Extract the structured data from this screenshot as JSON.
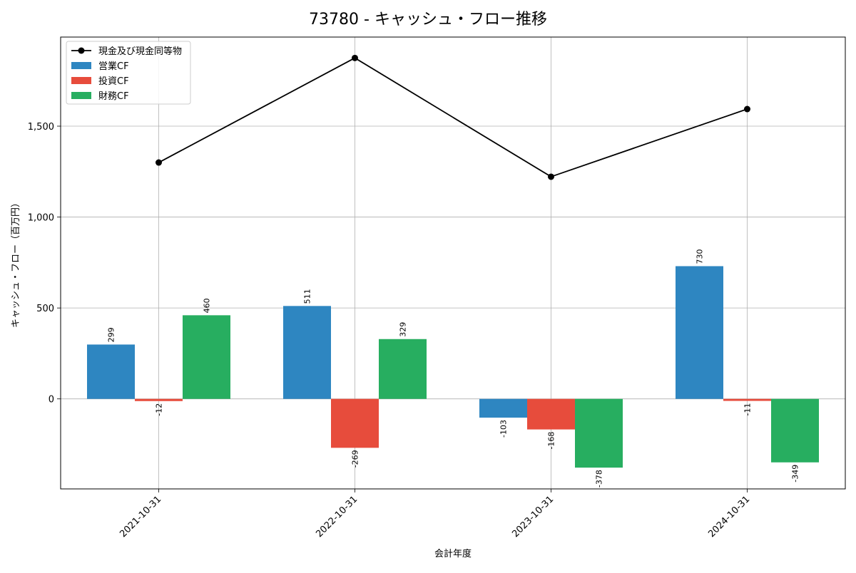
{
  "chart_data": {
    "type": "bar",
    "title": "73780 - キャッシュ・フロー推移",
    "xlabel": "会計年度",
    "ylabel": "キャッシュ・フロー（百万円）",
    "categories": [
      "2021-10-31",
      "2022-10-31",
      "2023-10-31",
      "2024-10-31"
    ],
    "ylim": [
      -495,
      1990
    ],
    "yticks": [
      0,
      500,
      1000,
      1500
    ],
    "ytick_labels": [
      "0",
      "500",
      "1,000",
      "1,500"
    ],
    "grid": true,
    "legend_position": "top-left",
    "series": [
      {
        "name": "営業CF",
        "kind": "bar",
        "color": "#2e86c1",
        "values": [
          299,
          511,
          -103,
          730
        ],
        "labels": [
          "299",
          "511",
          "-103",
          "730"
        ]
      },
      {
        "name": "投資CF",
        "kind": "bar",
        "color": "#e74c3c",
        "values": [
          -12,
          -269,
          -168,
          -11
        ],
        "labels": [
          "-12",
          "-269",
          "-168",
          "-11"
        ]
      },
      {
        "name": "財務CF",
        "kind": "bar",
        "color": "#27ae60",
        "values": [
          460,
          329,
          -378,
          -349
        ],
        "labels": [
          "460",
          "329",
          "-378",
          "-349"
        ]
      },
      {
        "name": "現金及び現金同等物",
        "kind": "line",
        "color": "#000000",
        "values": [
          1300,
          1875,
          1222,
          1594
        ]
      }
    ]
  }
}
